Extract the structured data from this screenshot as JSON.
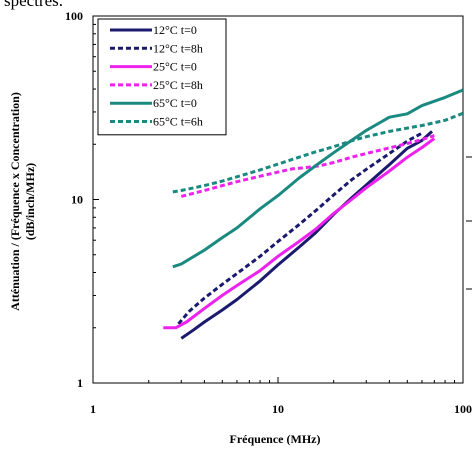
{
  "header_fragment": "spectres.",
  "chart_data": {
    "type": "line",
    "title": "",
    "xlabel": "Fréquence (MHz)",
    "ylabel_lines": [
      "Atténuation / (Fréquence x Concentration)",
      "(dB/inch/MHz)"
    ],
    "xscale": "log",
    "yscale": "log",
    "xlim": [
      1,
      100
    ],
    "ylim": [
      1,
      100
    ],
    "xticks": [
      1,
      10,
      100
    ],
    "xtick_labels": [
      "1",
      "10",
      "100"
    ],
    "yticks": [
      1,
      10,
      100
    ],
    "ytick_labels": [
      "1",
      "10",
      "100"
    ],
    "grid": false,
    "legend_position": "top-left",
    "series": [
      {
        "name": "12°C t=0",
        "color": "#1a1a6e",
        "dash": "solid",
        "x": [
          3,
          3.5,
          4,
          5,
          6,
          8,
          10,
          13,
          16,
          20,
          25,
          30,
          40,
          50,
          60,
          68
        ],
        "y": [
          1.75,
          1.95,
          2.15,
          2.5,
          2.85,
          3.6,
          4.4,
          5.5,
          6.6,
          8.3,
          10.2,
          12,
          15.5,
          19,
          21,
          23.5
        ]
      },
      {
        "name": "12°C t=8h",
        "color": "#1a1a6e",
        "dash": "dash",
        "x": [
          2.9,
          3.3,
          4,
          5,
          6,
          8,
          10,
          13,
          16,
          20,
          25,
          30,
          40,
          50,
          60
        ],
        "y": [
          2.1,
          2.45,
          2.9,
          3.45,
          3.95,
          4.9,
          5.9,
          7.3,
          8.7,
          10.6,
          12.8,
          14.6,
          17.8,
          20.8,
          23
        ]
      },
      {
        "name": "25°C t=0",
        "color": "#ee22ee",
        "dash": "solid",
        "x": [
          2.4,
          2.8,
          3.2,
          4,
          5,
          6,
          8,
          10,
          13,
          16,
          20,
          25,
          30,
          40,
          50,
          60,
          70
        ],
        "y": [
          2.0,
          2.0,
          2.15,
          2.55,
          3.0,
          3.4,
          4.1,
          4.9,
          5.9,
          6.9,
          8.4,
          10,
          11.6,
          14.3,
          17,
          19.2,
          21.5
        ]
      },
      {
        "name": "25°C t=8h",
        "color": "#ee22ee",
        "dash": "dash",
        "x": [
          3,
          4,
          5,
          6,
          8,
          10,
          12,
          14,
          17,
          20,
          25,
          30,
          40,
          50,
          60,
          70
        ],
        "y": [
          10.4,
          11.2,
          11.9,
          12.5,
          13.4,
          14.1,
          14.7,
          14.9,
          15.3,
          15.9,
          17,
          17.8,
          19.1,
          20.2,
          21.2,
          22.3
        ]
      },
      {
        "name": "65°C t=0",
        "color": "#1a8a80",
        "dash": "solid",
        "x": [
          2.7,
          3,
          4,
          5,
          6,
          8,
          10,
          13,
          16,
          20,
          25,
          30,
          40,
          50,
          60,
          80,
          100
        ],
        "y": [
          4.3,
          4.45,
          5.3,
          6.2,
          7.0,
          8.9,
          10.5,
          13.1,
          15.3,
          18,
          21,
          23.8,
          28.1,
          29.3,
          32.5,
          36,
          39.5
        ]
      },
      {
        "name": "65°C t=6h",
        "color": "#1a8a80",
        "dash": "dash",
        "x": [
          2.7,
          3,
          4,
          5,
          6,
          8,
          10,
          13,
          16,
          20,
          25,
          30,
          40,
          50,
          60,
          80,
          100
        ],
        "y": [
          11,
          11.2,
          11.9,
          12.6,
          13.3,
          14.5,
          15.6,
          17,
          18.2,
          19.4,
          20.9,
          22,
          23.5,
          24.5,
          25.3,
          27,
          29.5
        ]
      }
    ]
  }
}
